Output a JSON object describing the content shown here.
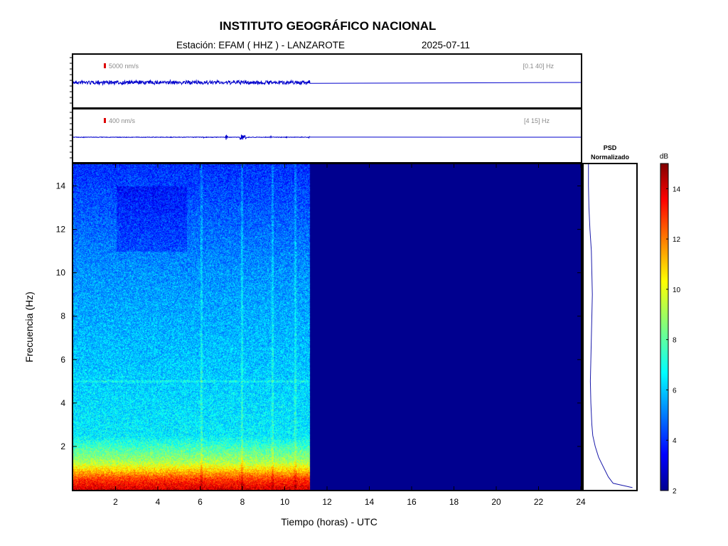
{
  "header": {
    "title": "INSTITUTO GEOGRÁFICO NACIONAL",
    "station_label": "Estación:  EFAM ( HHZ ) - LANZAROTE",
    "date": "2025-07-11"
  },
  "traces": [
    {
      "scale_label": "5000 nm/s",
      "filter_label": "[0.1 40] Hz",
      "data_until_hour": 11.2
    },
    {
      "scale_label": "400 nm/s",
      "filter_label": "[4 15] Hz",
      "data_until_hour": 11.2
    }
  ],
  "colors": {
    "trace": "#0000cc",
    "scale_bar": "#dd0000",
    "empty_spectrogram": "#00008f",
    "psd_line": "#1a1aaa"
  },
  "psd": {
    "title_line1": "PSD",
    "title_line2": "Normalizado"
  },
  "colorbar": {
    "label": "dB",
    "min": 2,
    "max": 15,
    "ticks": [
      2,
      4,
      6,
      8,
      10,
      12,
      14
    ],
    "colormap": "jet"
  },
  "chart_data": {
    "type": "heatmap",
    "title": "INSTITUTO GEOGRÁFICO NACIONAL",
    "xlabel": "Tiempo (horas) - UTC",
    "ylabel": "Frecuencia  (Hz)",
    "xlim": [
      0,
      24
    ],
    "ylim": [
      0,
      15
    ],
    "xticks": [
      2,
      4,
      6,
      8,
      10,
      12,
      14,
      16,
      18,
      20,
      22,
      24
    ],
    "yticks": [
      2,
      4,
      6,
      8,
      10,
      12,
      14
    ],
    "data_until_hour": 11.2,
    "psd_profile": {
      "freq_hz": [
        0.1,
        0.3,
        0.6,
        1,
        1.5,
        2,
        2.5,
        3,
        3.5,
        4,
        5,
        6,
        7,
        8,
        9,
        10,
        11,
        12,
        13,
        14,
        15
      ],
      "normalized": [
        0.95,
        0.55,
        0.45,
        0.36,
        0.25,
        0.18,
        0.13,
        0.11,
        0.1,
        0.09,
        0.08,
        0.09,
        0.1,
        0.11,
        0.12,
        0.11,
        0.1,
        0.07,
        0.05,
        0.04,
        0.04
      ]
    }
  }
}
